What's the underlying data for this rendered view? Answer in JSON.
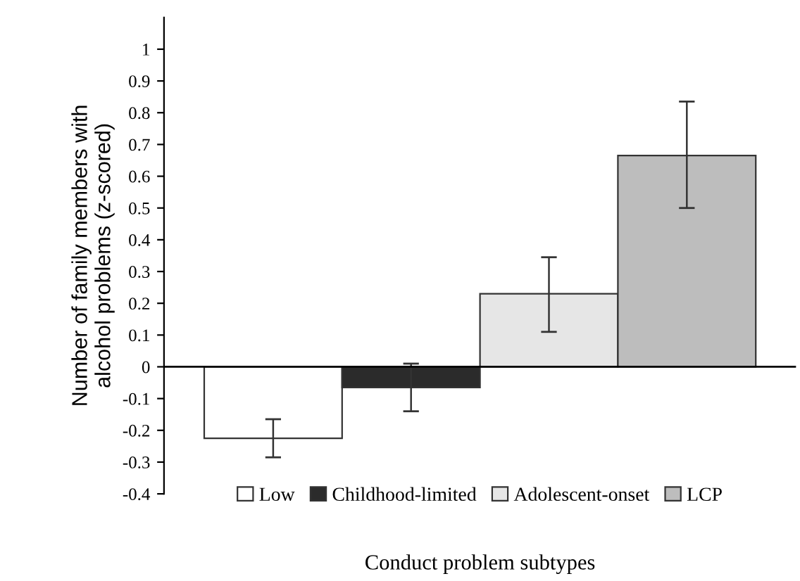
{
  "chart_data": {
    "type": "bar",
    "ylabel": "Number of family members with\nalcohol problems (z-scored)",
    "xlabel": "Conduct problem subtypes",
    "categories": [
      null
    ],
    "series": [
      {
        "name": "Low",
        "color": "#ffffff",
        "values": [
          -0.225
        ],
        "errors": [
          [
            -0.285,
            -0.165
          ]
        ]
      },
      {
        "name": "Childhood-limited",
        "color": "#2b2b2b",
        "values": [
          -0.065
        ],
        "errors": [
          [
            -0.14,
            0.01
          ]
        ]
      },
      {
        "name": "Adolescent-onset",
        "color": "#e6e6e6",
        "values": [
          0.23
        ],
        "errors": [
          [
            0.11,
            0.345
          ]
        ]
      },
      {
        "name": "LCP",
        "color": "#bdbdbd",
        "values": [
          0.665
        ],
        "errors": [
          [
            0.5,
            0.835
          ]
        ]
      }
    ],
    "ylim": [
      -0.4,
      1.1
    ],
    "yticks": [
      -0.4,
      -0.3,
      -0.2,
      -0.1,
      0,
      0.1,
      0.2,
      0.3,
      0.4,
      0.5,
      0.6,
      0.7,
      0.8,
      0.9,
      1
    ],
    "grid": false,
    "ref_lines": [
      {
        "axis": "y",
        "value": 0,
        "color": "#000000"
      }
    ],
    "legend": "bottom"
  }
}
